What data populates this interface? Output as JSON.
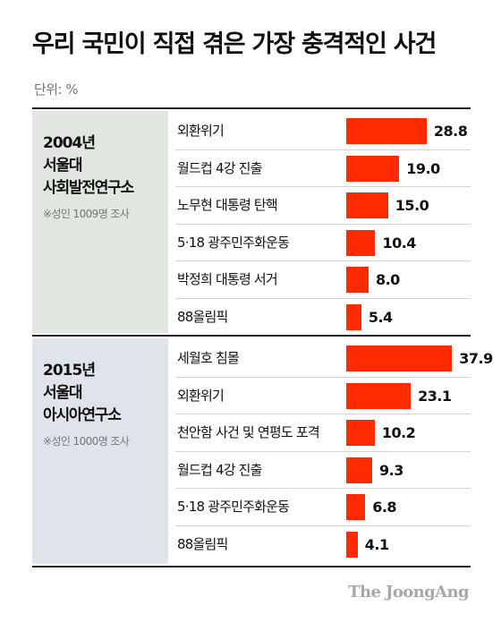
{
  "title": "우리 국민이 직접 겪은 가장 충격적인 사건",
  "unit": "단위: %",
  "brand": "The JoongAng",
  "chart_data": [
    {
      "type": "bar",
      "group": {
        "year": "2004년",
        "org_line1": "서울대",
        "org_line2": "사회발전연구소",
        "note": "※성인 1009명 조사"
      },
      "categories": [
        "외환위기",
        "월드컵 4강 진출",
        "노무현 대통령 탄핵",
        "5·18 광주민주화운동",
        "박정희 대통령 서거",
        "88올림픽"
      ],
      "values": [
        28.8,
        19.0,
        15.0,
        10.4,
        8.0,
        5.4
      ],
      "value_labels": [
        "28.8",
        "19.0",
        "15.0",
        "10.4",
        "8.0",
        "5.4"
      ],
      "xlim": [
        0,
        40
      ],
      "bar_color": "#ff2a00"
    },
    {
      "type": "bar",
      "group": {
        "year": "2015년",
        "org_line1": "서울대",
        "org_line2": "아시아연구소",
        "note": "※성인 1000명 조사"
      },
      "categories": [
        "세월호 침몰",
        "외환위기",
        "천안함 사건 및 연평도 포격",
        "월드컵 4강 진출",
        "5·18 광주민주화운동",
        "88올림픽"
      ],
      "values": [
        37.9,
        23.1,
        10.2,
        9.3,
        6.8,
        4.1
      ],
      "value_labels": [
        "37.9",
        "23.1",
        "10.2",
        "9.3",
        "6.8",
        "4.1"
      ],
      "xlim": [
        0,
        40
      ],
      "bar_color": "#ff2a00"
    }
  ]
}
